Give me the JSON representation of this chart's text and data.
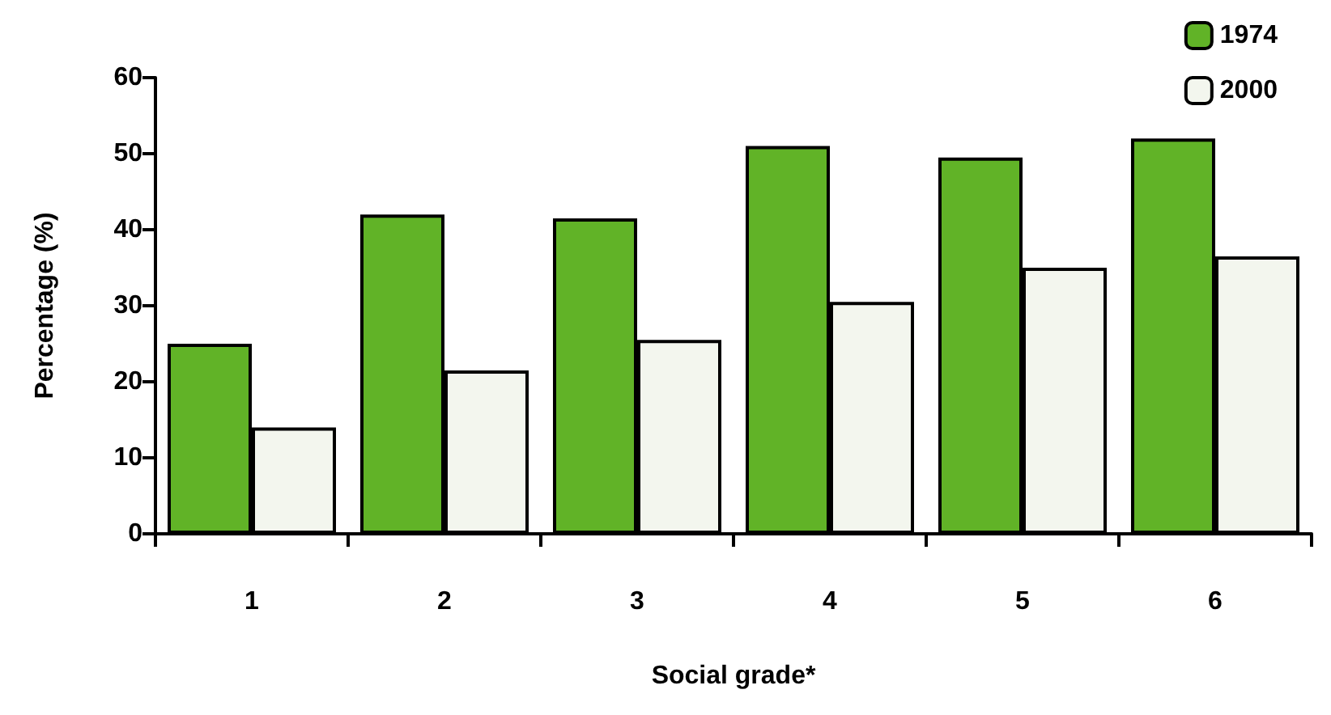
{
  "chart_data": {
    "type": "bar",
    "xlabel": "Social grade*",
    "ylabel": "Percentage (%)",
    "categories": [
      "1",
      "2",
      "3",
      "4",
      "5",
      "6"
    ],
    "series": [
      {
        "name": "1974",
        "color": "#61b327",
        "values": [
          25,
          42,
          41.5,
          51,
          49.5,
          52
        ]
      },
      {
        "name": "2000",
        "color": "#f3f6ee",
        "values": [
          14,
          21.5,
          25.5,
          30.5,
          35,
          36.5
        ]
      }
    ],
    "ylim": [
      0,
      60
    ],
    "yticks": [
      0,
      10,
      20,
      30,
      40,
      50,
      60
    ],
    "grid": false,
    "legend": "top right"
  }
}
